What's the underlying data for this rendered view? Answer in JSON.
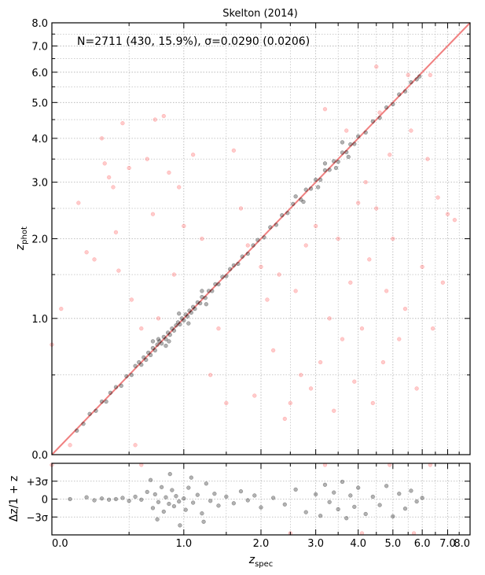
{
  "chart_data": {
    "type": "scatter",
    "title": "Skelton (2014)",
    "annotation": "N=2711 (430, 15.9%), σ=0.0290 (0.0206)",
    "scale": "log(1+z)",
    "xlim": [
      0.0,
      8.0
    ],
    "ylim": [
      0.0,
      8.0
    ],
    "grid": true,
    "colors": {
      "good": "#000000",
      "outlier": "#ff6b6b",
      "one_to_one": "#f08080",
      "grid": "#b0b0b0"
    },
    "main": {
      "xlabel_main": "z",
      "xlabel_sub": "spec",
      "ylabel_main": "z",
      "ylabel_sub": "phot",
      "tick_labels": [
        "0.0",
        "1.0",
        "2.0",
        "3.0",
        "4.0",
        "5.0",
        "6.0",
        "7.0",
        "8.0"
      ],
      "tick_values": [
        0.0,
        1.0,
        2.0,
        3.0,
        4.0,
        5.0,
        6.0,
        7.0,
        8.0
      ],
      "good_points": [
        [
          0.14,
          0.13
        ],
        [
          0.18,
          0.17
        ],
        [
          0.22,
          0.23
        ],
        [
          0.26,
          0.25
        ],
        [
          0.3,
          0.31
        ],
        [
          0.33,
          0.31
        ],
        [
          0.36,
          0.37
        ],
        [
          0.4,
          0.41
        ],
        [
          0.44,
          0.42
        ],
        [
          0.48,
          0.49
        ],
        [
          0.52,
          0.5
        ],
        [
          0.55,
          0.57
        ],
        [
          0.58,
          0.6
        ],
        [
          0.6,
          0.58
        ],
        [
          0.62,
          0.64
        ],
        [
          0.64,
          0.62
        ],
        [
          0.66,
          0.68
        ],
        [
          0.68,
          0.66
        ],
        [
          0.7,
          0.72
        ],
        [
          0.72,
          0.7
        ],
        [
          0.74,
          0.75
        ],
        [
          0.76,
          0.78
        ],
        [
          0.78,
          0.76
        ],
        [
          0.8,
          0.82
        ],
        [
          0.82,
          0.8
        ],
        [
          0.84,
          0.86
        ],
        [
          0.86,
          0.84
        ],
        [
          0.88,
          0.9
        ],
        [
          0.9,
          0.88
        ],
        [
          0.92,
          0.93
        ],
        [
          0.94,
          0.96
        ],
        [
          0.96,
          0.94
        ],
        [
          0.98,
          1.0
        ],
        [
          1.0,
          0.98
        ],
        [
          1.02,
          1.04
        ],
        [
          1.04,
          1.02
        ],
        [
          1.06,
          1.08
        ],
        [
          1.08,
          1.06
        ],
        [
          1.1,
          1.12
        ],
        [
          1.12,
          1.1
        ],
        [
          1.15,
          1.17
        ],
        [
          1.18,
          1.16
        ],
        [
          1.2,
          1.23
        ],
        [
          1.24,
          1.22
        ],
        [
          1.28,
          1.3
        ],
        [
          1.32,
          1.3
        ],
        [
          1.36,
          1.38
        ],
        [
          1.4,
          1.38
        ],
        [
          1.45,
          1.47
        ],
        [
          1.5,
          1.48
        ],
        [
          1.55,
          1.57
        ],
        [
          1.6,
          1.62
        ],
        [
          1.66,
          1.64
        ],
        [
          1.72,
          1.74
        ],
        [
          1.8,
          1.78
        ],
        [
          1.88,
          1.9
        ],
        [
          1.95,
          1.98
        ],
        [
          2.05,
          2.02
        ],
        [
          2.15,
          2.18
        ],
        [
          2.25,
          2.22
        ],
        [
          2.35,
          2.38
        ],
        [
          2.45,
          2.42
        ],
        [
          2.55,
          2.58
        ],
        [
          2.7,
          2.66
        ],
        [
          2.8,
          2.85
        ],
        [
          2.9,
          2.87
        ],
        [
          3.0,
          3.05
        ],
        [
          3.1,
          3.05
        ],
        [
          3.2,
          3.25
        ],
        [
          3.3,
          3.26
        ],
        [
          3.4,
          3.45
        ],
        [
          3.5,
          3.44
        ],
        [
          3.6,
          3.65
        ],
        [
          3.7,
          3.66
        ],
        [
          3.8,
          3.85
        ],
        [
          3.9,
          3.86
        ],
        [
          4.0,
          4.05
        ],
        [
          4.2,
          4.15
        ],
        [
          4.4,
          4.45
        ],
        [
          4.6,
          4.55
        ],
        [
          4.8,
          4.85
        ],
        [
          5.0,
          4.95
        ],
        [
          5.2,
          5.25
        ],
        [
          5.4,
          5.35
        ],
        [
          5.6,
          5.65
        ],
        [
          5.8,
          5.75
        ],
        [
          5.9,
          5.85
        ],
        [
          0.75,
          0.8
        ],
        [
          0.85,
          0.78
        ],
        [
          0.95,
          1.05
        ],
        [
          1.05,
          0.95
        ],
        [
          1.2,
          1.3
        ],
        [
          1.25,
          1.15
        ],
        [
          0.7,
          0.78
        ],
        [
          0.82,
          0.74
        ],
        [
          3.05,
          2.9
        ],
        [
          3.2,
          3.4
        ],
        [
          3.45,
          3.3
        ],
        [
          3.6,
          3.9
        ],
        [
          3.75,
          3.55
        ],
        [
          2.6,
          2.72
        ],
        [
          2.75,
          2.62
        ]
      ],
      "outlier_points": [
        [
          0.0,
          0.75
        ],
        [
          0.05,
          1.1
        ],
        [
          0.1,
          0.05
        ],
        [
          0.15,
          2.6
        ],
        [
          0.2,
          1.8
        ],
        [
          0.25,
          1.7
        ],
        [
          0.3,
          4.0
        ],
        [
          0.32,
          3.4
        ],
        [
          0.35,
          3.1
        ],
        [
          0.38,
          2.9
        ],
        [
          0.4,
          2.1
        ],
        [
          0.42,
          1.55
        ],
        [
          0.45,
          4.4
        ],
        [
          0.5,
          3.3
        ],
        [
          0.52,
          1.2
        ],
        [
          0.55,
          0.05
        ],
        [
          0.6,
          0.9
        ],
        [
          0.65,
          3.5
        ],
        [
          0.7,
          2.4
        ],
        [
          0.72,
          4.5
        ],
        [
          0.75,
          1.0
        ],
        [
          0.8,
          4.6
        ],
        [
          0.85,
          3.2
        ],
        [
          0.9,
          1.5
        ],
        [
          0.95,
          2.9
        ],
        [
          1.0,
          2.2
        ],
        [
          1.1,
          3.6
        ],
        [
          1.2,
          2.0
        ],
        [
          1.3,
          0.5
        ],
        [
          1.4,
          0.9
        ],
        [
          1.5,
          0.3
        ],
        [
          1.6,
          3.7
        ],
        [
          1.7,
          2.5
        ],
        [
          1.8,
          1.9
        ],
        [
          1.9,
          0.35
        ],
        [
          2.0,
          1.6
        ],
        [
          2.1,
          1.2
        ],
        [
          2.2,
          0.7
        ],
        [
          2.3,
          1.5
        ],
        [
          2.4,
          0.2
        ],
        [
          2.5,
          0.3
        ],
        [
          2.6,
          1.3
        ],
        [
          2.7,
          0.5
        ],
        [
          2.8,
          1.9
        ],
        [
          2.9,
          0.4
        ],
        [
          3.0,
          2.2
        ],
        [
          3.1,
          0.6
        ],
        [
          3.2,
          4.8
        ],
        [
          3.3,
          1.0
        ],
        [
          3.4,
          0.25
        ],
        [
          3.5,
          2.0
        ],
        [
          3.6,
          0.8
        ],
        [
          3.7,
          4.2
        ],
        [
          3.8,
          1.4
        ],
        [
          3.9,
          0.45
        ],
        [
          4.0,
          2.6
        ],
        [
          4.1,
          0.9
        ],
        [
          4.2,
          3.0
        ],
        [
          4.3,
          1.7
        ],
        [
          4.4,
          0.3
        ],
        [
          4.5,
          2.5
        ],
        [
          4.6,
          4.7
        ],
        [
          4.7,
          0.6
        ],
        [
          4.8,
          1.3
        ],
        [
          4.9,
          3.6
        ],
        [
          5.0,
          2.0
        ],
        [
          5.2,
          0.8
        ],
        [
          5.4,
          1.1
        ],
        [
          5.6,
          4.2
        ],
        [
          5.8,
          0.4
        ],
        [
          6.0,
          1.6
        ],
        [
          6.2,
          3.5
        ],
        [
          6.4,
          0.9
        ],
        [
          6.6,
          2.7
        ],
        [
          6.8,
          1.4
        ],
        [
          7.0,
          2.4
        ],
        [
          7.3,
          2.3
        ],
        [
          5.5,
          5.9
        ],
        [
          4.5,
          6.2
        ],
        [
          6.3,
          5.9
        ]
      ]
    },
    "residual": {
      "ylabel": "Δz/1 + z",
      "tick_labels": [
        "+3σ",
        "0",
        "−3σ"
      ],
      "tick_values": [
        3,
        0,
        -3
      ],
      "ylim": [
        -6,
        6
      ],
      "good_points": [
        [
          0.1,
          0.0
        ],
        [
          0.2,
          0.3
        ],
        [
          0.25,
          -0.2
        ],
        [
          0.3,
          0.1
        ],
        [
          0.35,
          -0.1
        ],
        [
          0.4,
          0.0
        ],
        [
          0.45,
          0.2
        ],
        [
          0.5,
          -0.3
        ],
        [
          0.55,
          0.4
        ],
        [
          0.6,
          -0.1
        ],
        [
          0.65,
          1.2
        ],
        [
          0.7,
          -1.5
        ],
        [
          0.72,
          0.8
        ],
        [
          0.75,
          -0.5
        ],
        [
          0.78,
          2.0
        ],
        [
          0.8,
          -2.1
        ],
        [
          0.82,
          0.3
        ],
        [
          0.85,
          -0.8
        ],
        [
          0.88,
          1.5
        ],
        [
          0.9,
          -1.2
        ],
        [
          0.92,
          0.5
        ],
        [
          0.95,
          -0.4
        ],
        [
          1.0,
          0.1
        ],
        [
          1.02,
          -1.8
        ],
        [
          1.05,
          1.9
        ],
        [
          1.1,
          -0.6
        ],
        [
          1.15,
          0.7
        ],
        [
          1.2,
          -2.4
        ],
        [
          1.25,
          2.6
        ],
        [
          1.3,
          -0.3
        ],
        [
          1.35,
          0.9
        ],
        [
          1.4,
          -1.1
        ],
        [
          1.5,
          0.4
        ],
        [
          1.6,
          -0.7
        ],
        [
          1.7,
          1.3
        ],
        [
          1.8,
          -0.2
        ],
        [
          1.9,
          0.6
        ],
        [
          2.0,
          -1.4
        ],
        [
          2.2,
          0.2
        ],
        [
          2.4,
          -0.9
        ],
        [
          2.6,
          1.6
        ],
        [
          2.8,
          -2.2
        ],
        [
          3.0,
          0.8
        ],
        [
          3.1,
          -2.8
        ],
        [
          3.2,
          2.4
        ],
        [
          3.3,
          -0.5
        ],
        [
          3.4,
          1.1
        ],
        [
          3.5,
          -1.7
        ],
        [
          3.6,
          2.9
        ],
        [
          3.7,
          -3.2
        ],
        [
          3.8,
          0.6
        ],
        [
          3.9,
          -1.3
        ],
        [
          4.0,
          1.9
        ],
        [
          4.2,
          -2.5
        ],
        [
          4.4,
          0.4
        ],
        [
          4.6,
          -1.0
        ],
        [
          4.8,
          2.2
        ],
        [
          5.0,
          -2.9
        ],
        [
          5.2,
          0.9
        ],
        [
          5.4,
          -1.6
        ],
        [
          5.6,
          1.4
        ],
        [
          5.8,
          -0.4
        ],
        [
          6.0,
          0.2
        ],
        [
          0.68,
          3.2
        ],
        [
          0.74,
          -3.4
        ],
        [
          1.08,
          3.6
        ],
        [
          1.22,
          -3.8
        ],
        [
          0.86,
          4.2
        ],
        [
          0.96,
          -4.4
        ]
      ],
      "outlier_points": [
        [
          0.0,
          5.8
        ],
        [
          0.6,
          5.8
        ],
        [
          2.5,
          -5.8
        ],
        [
          3.2,
          5.8
        ],
        [
          4.1,
          -5.8
        ],
        [
          4.9,
          5.8
        ],
        [
          5.7,
          -5.8
        ],
        [
          6.3,
          5.8
        ]
      ]
    }
  }
}
